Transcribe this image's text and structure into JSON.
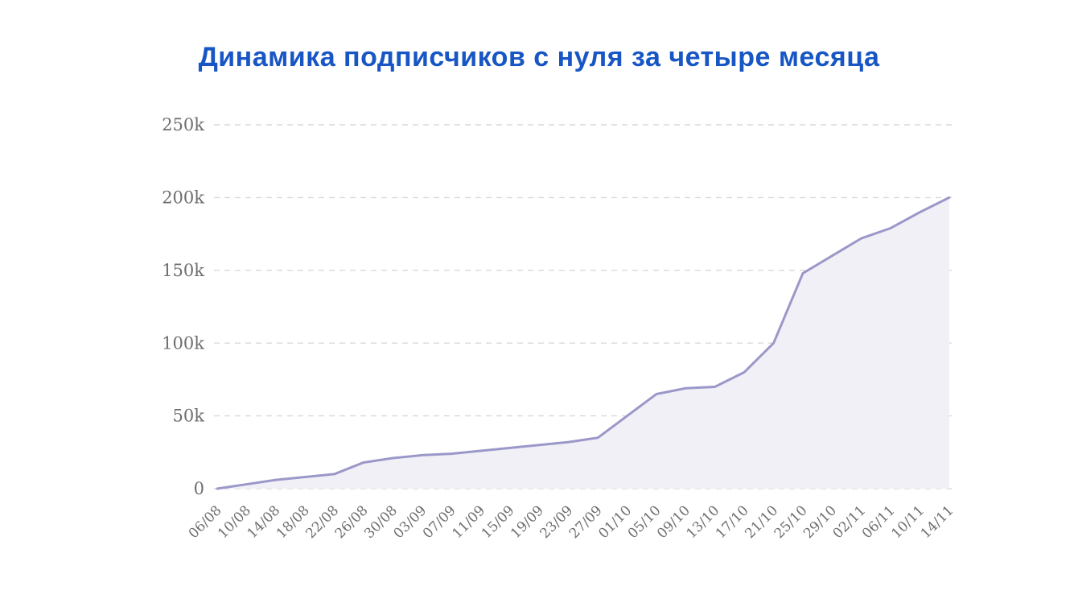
{
  "page": {
    "title": "Динамика подписчиков с нуля за четыре месяца"
  },
  "chart_data": {
    "type": "area",
    "title": "Динамика подписчиков с нуля за четыре месяца",
    "categories": [
      "06/08",
      "10/08",
      "14/08",
      "18/08",
      "22/08",
      "26/08",
      "30/08",
      "03/09",
      "07/09",
      "11/09",
      "15/09",
      "19/09",
      "23/09",
      "27/09",
      "01/10",
      "05/10",
      "09/10",
      "13/10",
      "17/10",
      "21/10",
      "25/10",
      "29/10",
      "02/11",
      "06/11",
      "10/11",
      "14/11"
    ],
    "values": [
      0,
      3000,
      6000,
      8000,
      10000,
      18000,
      21000,
      23000,
      24000,
      26000,
      28000,
      30000,
      32000,
      35000,
      50000,
      65000,
      69000,
      70000,
      80000,
      100000,
      148000,
      160000,
      172000,
      179000,
      190000,
      200000
    ],
    "xlabel": "",
    "ylabel": "",
    "ylim": [
      0,
      250000
    ],
    "yticks": [
      {
        "value": 0,
        "label": "0"
      },
      {
        "value": 50000,
        "label": "50k"
      },
      {
        "value": 100000,
        "label": "100k"
      },
      {
        "value": 150000,
        "label": "150k"
      },
      {
        "value": 200000,
        "label": "200k"
      },
      {
        "value": 250000,
        "label": "250k"
      }
    ],
    "grid": "dashed-horizontal",
    "legend": "none",
    "colors": {
      "line": "#9b98c9",
      "fill": "#f1f0f6",
      "grid": "#d9d9d9",
      "tick_label": "#6e6e6e",
      "title": "#1756c4",
      "background": "#ffffff"
    }
  }
}
